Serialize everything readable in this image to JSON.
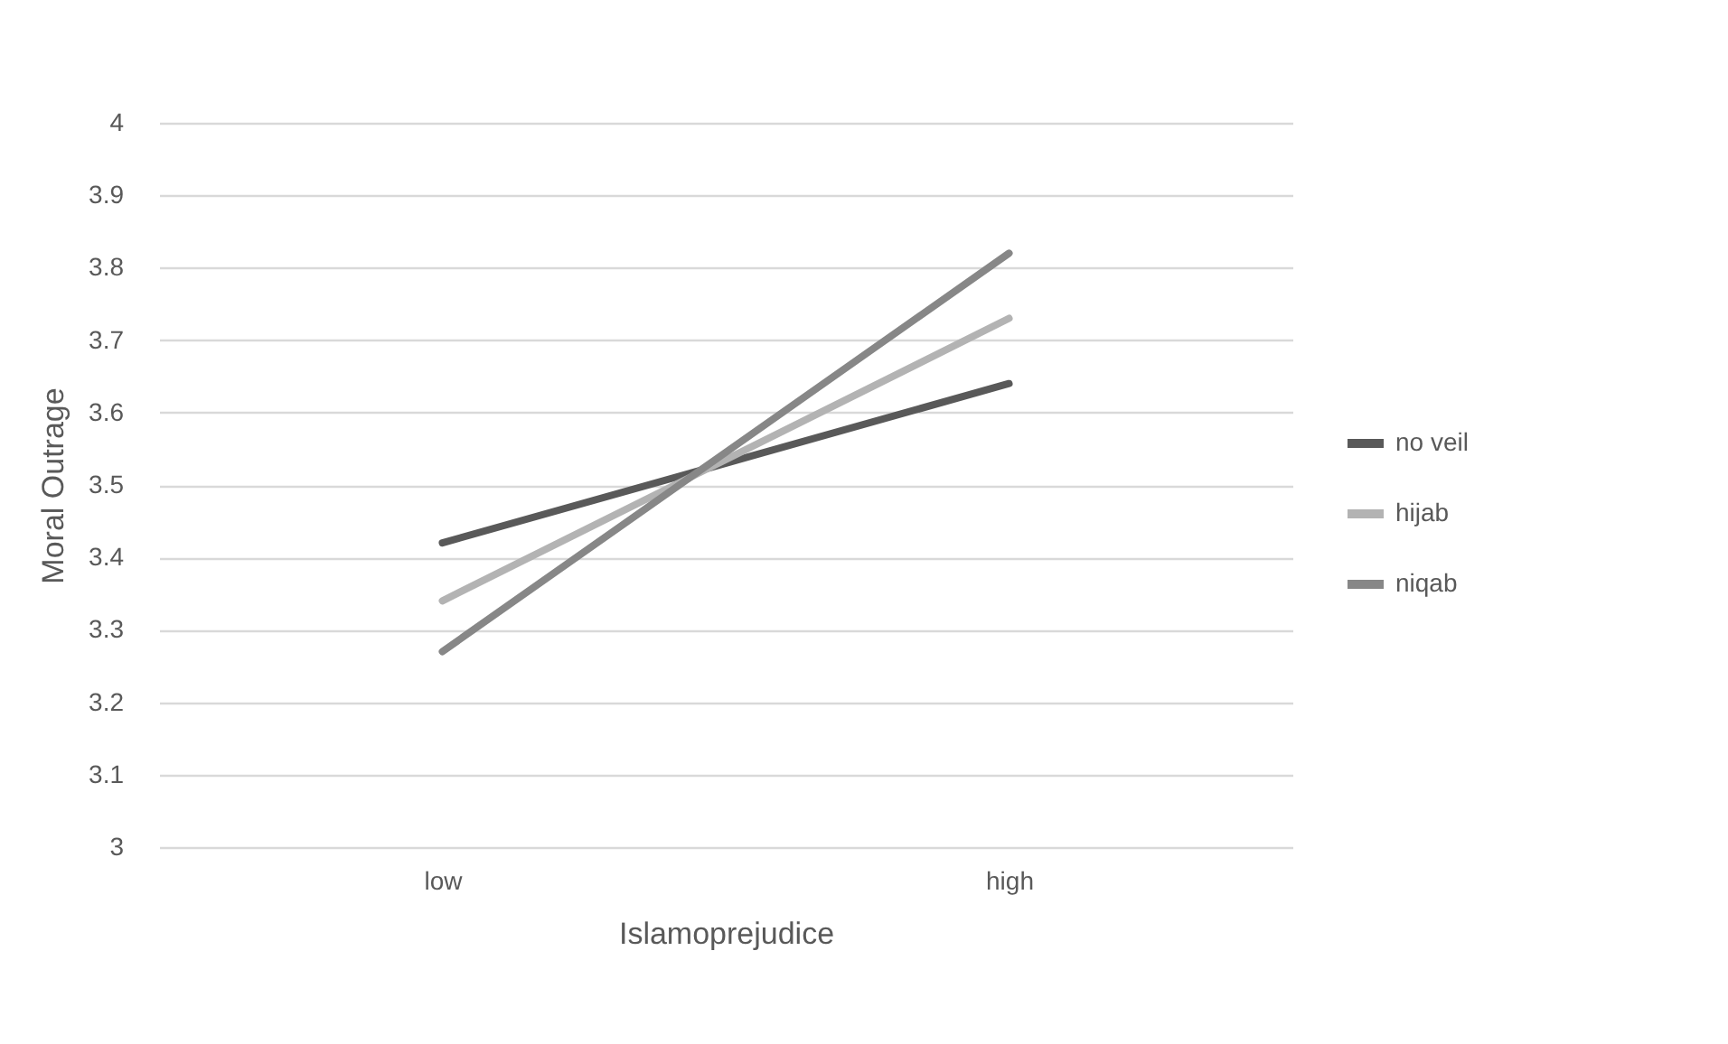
{
  "chart_data": {
    "type": "line",
    "xlabel": "Islamoprejudice",
    "ylabel": "Moral Outrage",
    "categories": [
      "low",
      "high"
    ],
    "series": [
      {
        "name": "no veil",
        "color": "#595959",
        "values": [
          3.42,
          3.64
        ]
      },
      {
        "name": "hijab",
        "color": "#b3b3b3",
        "values": [
          3.34,
          3.73
        ]
      },
      {
        "name": "niqab",
        "color": "#878787",
        "values": [
          3.27,
          3.82
        ]
      }
    ],
    "ylim": [
      3,
      4
    ],
    "yticks": [
      3,
      3.1,
      3.2,
      3.3,
      3.4,
      3.5,
      3.6,
      3.7,
      3.8,
      3.9,
      4
    ],
    "grid": "y",
    "legend": "right",
    "marker": "none",
    "line_style": "solid"
  }
}
